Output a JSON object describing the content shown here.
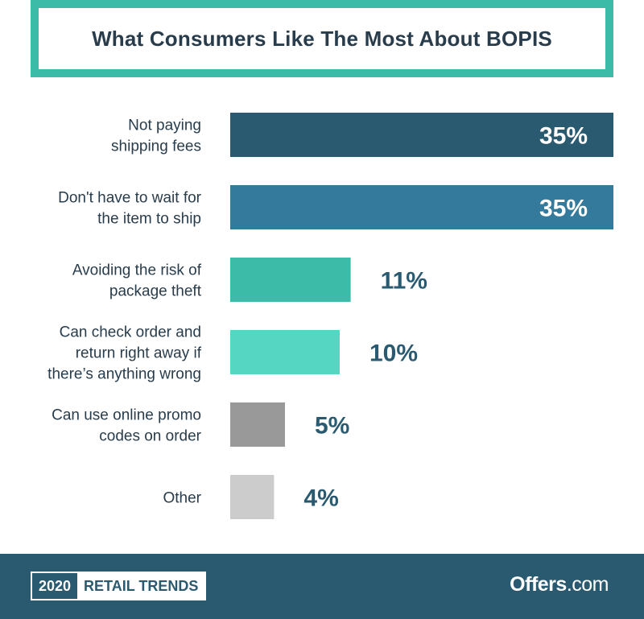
{
  "title": "What Consumers Like The Most About BOPIS",
  "chart_data": {
    "type": "bar",
    "orientation": "horizontal",
    "title": "What Consumers Like The Most About BOPIS",
    "categories": [
      [
        "Not paying",
        "shipping fees"
      ],
      [
        "Don't have to wait for",
        "the item to ship"
      ],
      [
        "Avoiding the risk of",
        "package theft"
      ],
      [
        "Can check order and",
        "return right away if",
        "there’s anything wrong"
      ],
      [
        "Can use online promo",
        "codes on order"
      ],
      [
        "Other"
      ]
    ],
    "values": [
      35,
      35,
      11,
      10,
      5,
      4
    ],
    "value_labels": [
      "35%",
      "35%",
      "11%",
      "10%",
      "5%",
      "4%"
    ],
    "colors": [
      "#2a5a70",
      "#337a9c",
      "#3bbba8",
      "#55d6c2",
      "#999999",
      "#cccccc"
    ],
    "xlim": [
      0,
      35
    ],
    "grid": false
  },
  "footer": {
    "badge_year": "2020",
    "badge_text": "RETAIL TRENDS",
    "brand_name": "Offers",
    "brand_tld": ".com"
  }
}
